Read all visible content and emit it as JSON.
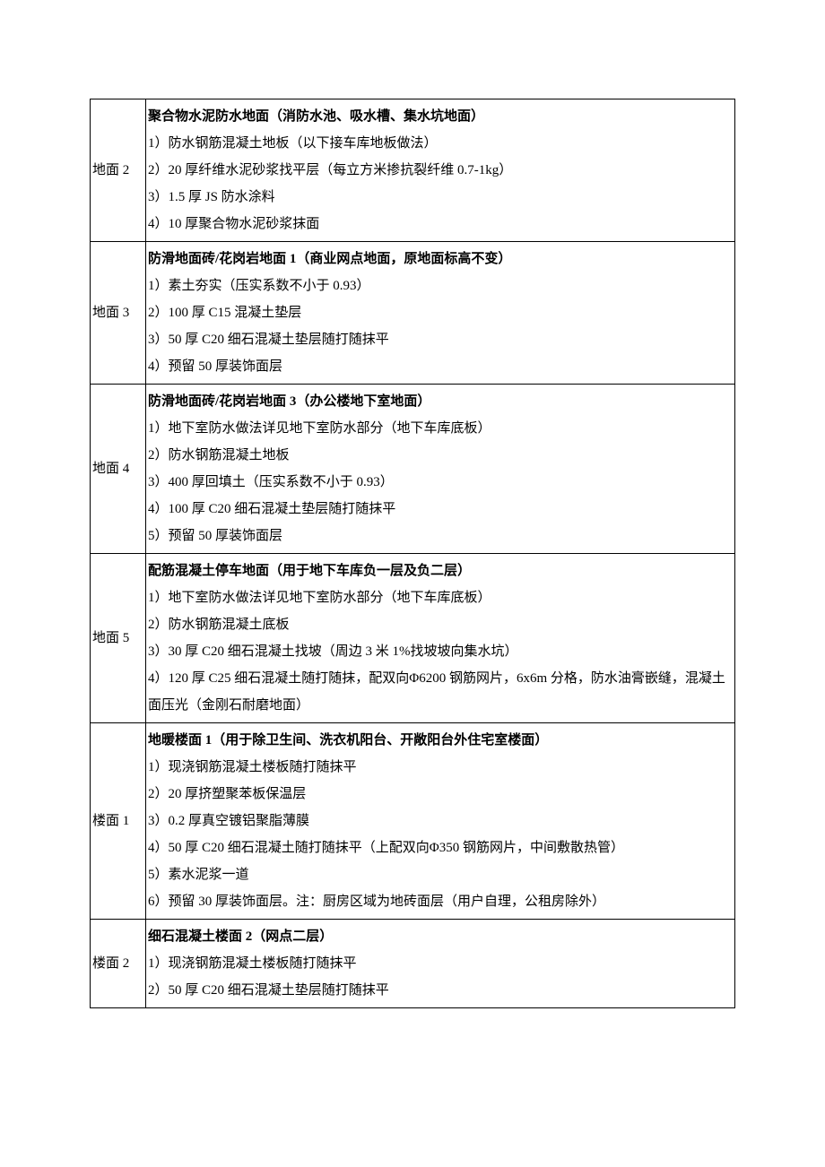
{
  "table": {
    "rows": [
      {
        "label": "地面 2",
        "title": "聚合物水泥防水地面（消防水池、吸水槽、集水坑地面）",
        "items": [
          "1）防水钢筋混凝土地板（以下接车库地板做法）",
          "2）20 厚纤维水泥砂浆找平层（每立方米掺抗裂纤维 0.7-1kg）",
          "3）1.5 厚 JS 防水涂料",
          "4）10 厚聚合物水泥砂浆抹面"
        ]
      },
      {
        "label": "地面 3",
        "title": "防滑地面砖/花岗岩地面 1（商业网点地面，原地面标高不变）",
        "items": [
          "1）素土夯实（压实系数不小于 0.93）",
          "2）100 厚 C15 混凝土垫层",
          "3）50 厚 C20 细石混凝土垫层随打随抹平",
          "4）预留 50 厚装饰面层"
        ]
      },
      {
        "label": "地面 4",
        "title": "防滑地面砖/花岗岩地面 3（办公楼地下室地面）",
        "items": [
          "1）地下室防水做法详见地下室防水部分（地下车库底板）",
          "2）防水钢筋混凝土地板",
          "3）400 厚回填土（压实系数不小于 0.93）",
          "4）100 厚 C20 细石混凝土垫层随打随抹平",
          "5）预留 50 厚装饰面层"
        ]
      },
      {
        "label": "地面 5",
        "title": "配筋混凝土停车地面（用于地下车库负一层及负二层）",
        "items": [
          "1）地下室防水做法详见地下室防水部分（地下车库底板）",
          "2）防水钢筋混凝土底板",
          "3）30 厚 C20 细石混凝土找坡（周边 3 米 1%找坡坡向集水坑）",
          "4）120 厚 C25 细石混凝土随打随抹，配双向Φ6200 钢筋网片，6x6m 分格，防水油膏嵌缝，混凝土面压光（金刚石耐磨地面）"
        ]
      },
      {
        "label": "楼面 1",
        "title": "地暖楼面 1（用于除卫生间、洗衣机阳台、开敞阳台外住宅室楼面）",
        "items": [
          "1）现浇钢筋混凝土楼板随打随抹平",
          "2）20 厚挤塑聚苯板保温层",
          "3）0.2 厚真空镀铝聚脂薄膜",
          "4）50 厚 C20 细石混凝土随打随抹平（上配双向Φ350 钢筋网片，中间敷散热管）",
          "5）素水泥浆一道",
          "6）预留 30 厚装饰面层。注：厨房区域为地砖面层（用户自理，公租房除外）"
        ]
      },
      {
        "label": "楼面 2",
        "title": "细石混凝土楼面 2（网点二层）",
        "items": [
          "1）现浇钢筋混凝土楼板随打随抹平",
          "2）50 厚 C20 细石混凝土垫层随打随抹平"
        ]
      }
    ]
  }
}
